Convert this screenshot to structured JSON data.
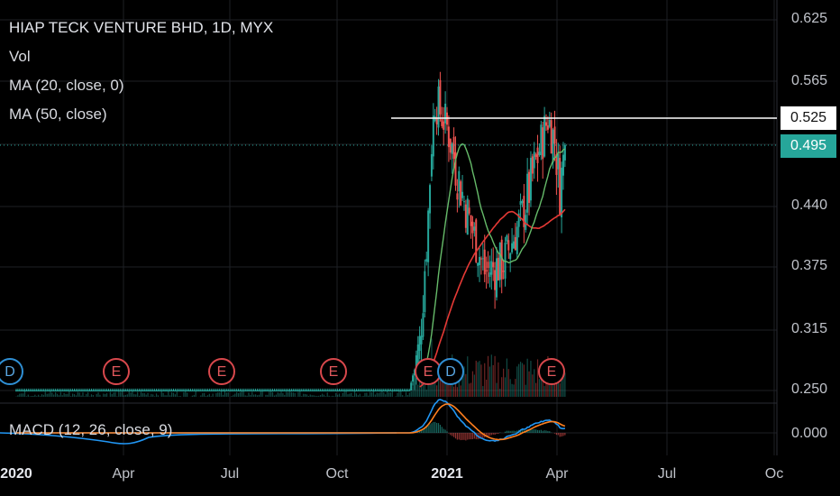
{
  "chart_data": {
    "type": "candlestick",
    "title": "HIAP TECK VENTURE BHD, 1D, MYX",
    "indicators": {
      "volume_label": "Vol",
      "ma20_label": "MA (20, close, 0)",
      "ma50_label": "MA (50, close)",
      "macd_label": "MACD (12, 26, close, 9)"
    },
    "price_axis": {
      "ticks": [
        "0.625",
        "0.565",
        "0.525",
        "0.495",
        "0.440",
        "0.375",
        "0.315",
        "0.250"
      ],
      "ylim": [
        0.25,
        0.625
      ]
    },
    "macd_axis": {
      "ticks": [
        "0.000"
      ]
    },
    "x_axis": {
      "ticks": [
        {
          "label": "2020",
          "bold": true
        },
        {
          "label": "Apr",
          "bold": false
        },
        {
          "label": "Jul",
          "bold": false
        },
        {
          "label": "Oct",
          "bold": false
        },
        {
          "label": "2021",
          "bold": true
        },
        {
          "label": "Apr",
          "bold": false
        },
        {
          "label": "Jul",
          "bold": false
        },
        {
          "label": "Oc",
          "bold": false
        }
      ]
    },
    "horizontal_line": {
      "value": "0.525"
    },
    "last_price": {
      "value": "0.495"
    },
    "events": [
      {
        "letter": "D",
        "kind": "dividend",
        "date": "2020-01"
      },
      {
        "letter": "E",
        "kind": "earnings",
        "date": "2020-03"
      },
      {
        "letter": "E",
        "kind": "earnings",
        "date": "2020-06"
      },
      {
        "letter": "E",
        "kind": "earnings",
        "date": "2020-09"
      },
      {
        "letter": "E",
        "kind": "earnings",
        "date": "2020-12"
      },
      {
        "letter": "D",
        "kind": "dividend",
        "date": "2021-01"
      },
      {
        "letter": "E",
        "kind": "earnings",
        "date": "2021-03"
      }
    ],
    "key_levels": {
      "base_price_2020": 0.25,
      "peak_2020_12": 0.545,
      "pullback_low_2021_02": 0.37,
      "peak_2021_03": 0.525,
      "last_close": 0.495,
      "ma50_last": 0.44
    },
    "colors": {
      "up": "#26a69a",
      "down": "#ef5350",
      "ma20": "#66bb6a",
      "ma50": "#e53935",
      "macd_line": "#2196f3",
      "signal_line": "#ff7f1e",
      "grid": "#1e2025"
    }
  }
}
